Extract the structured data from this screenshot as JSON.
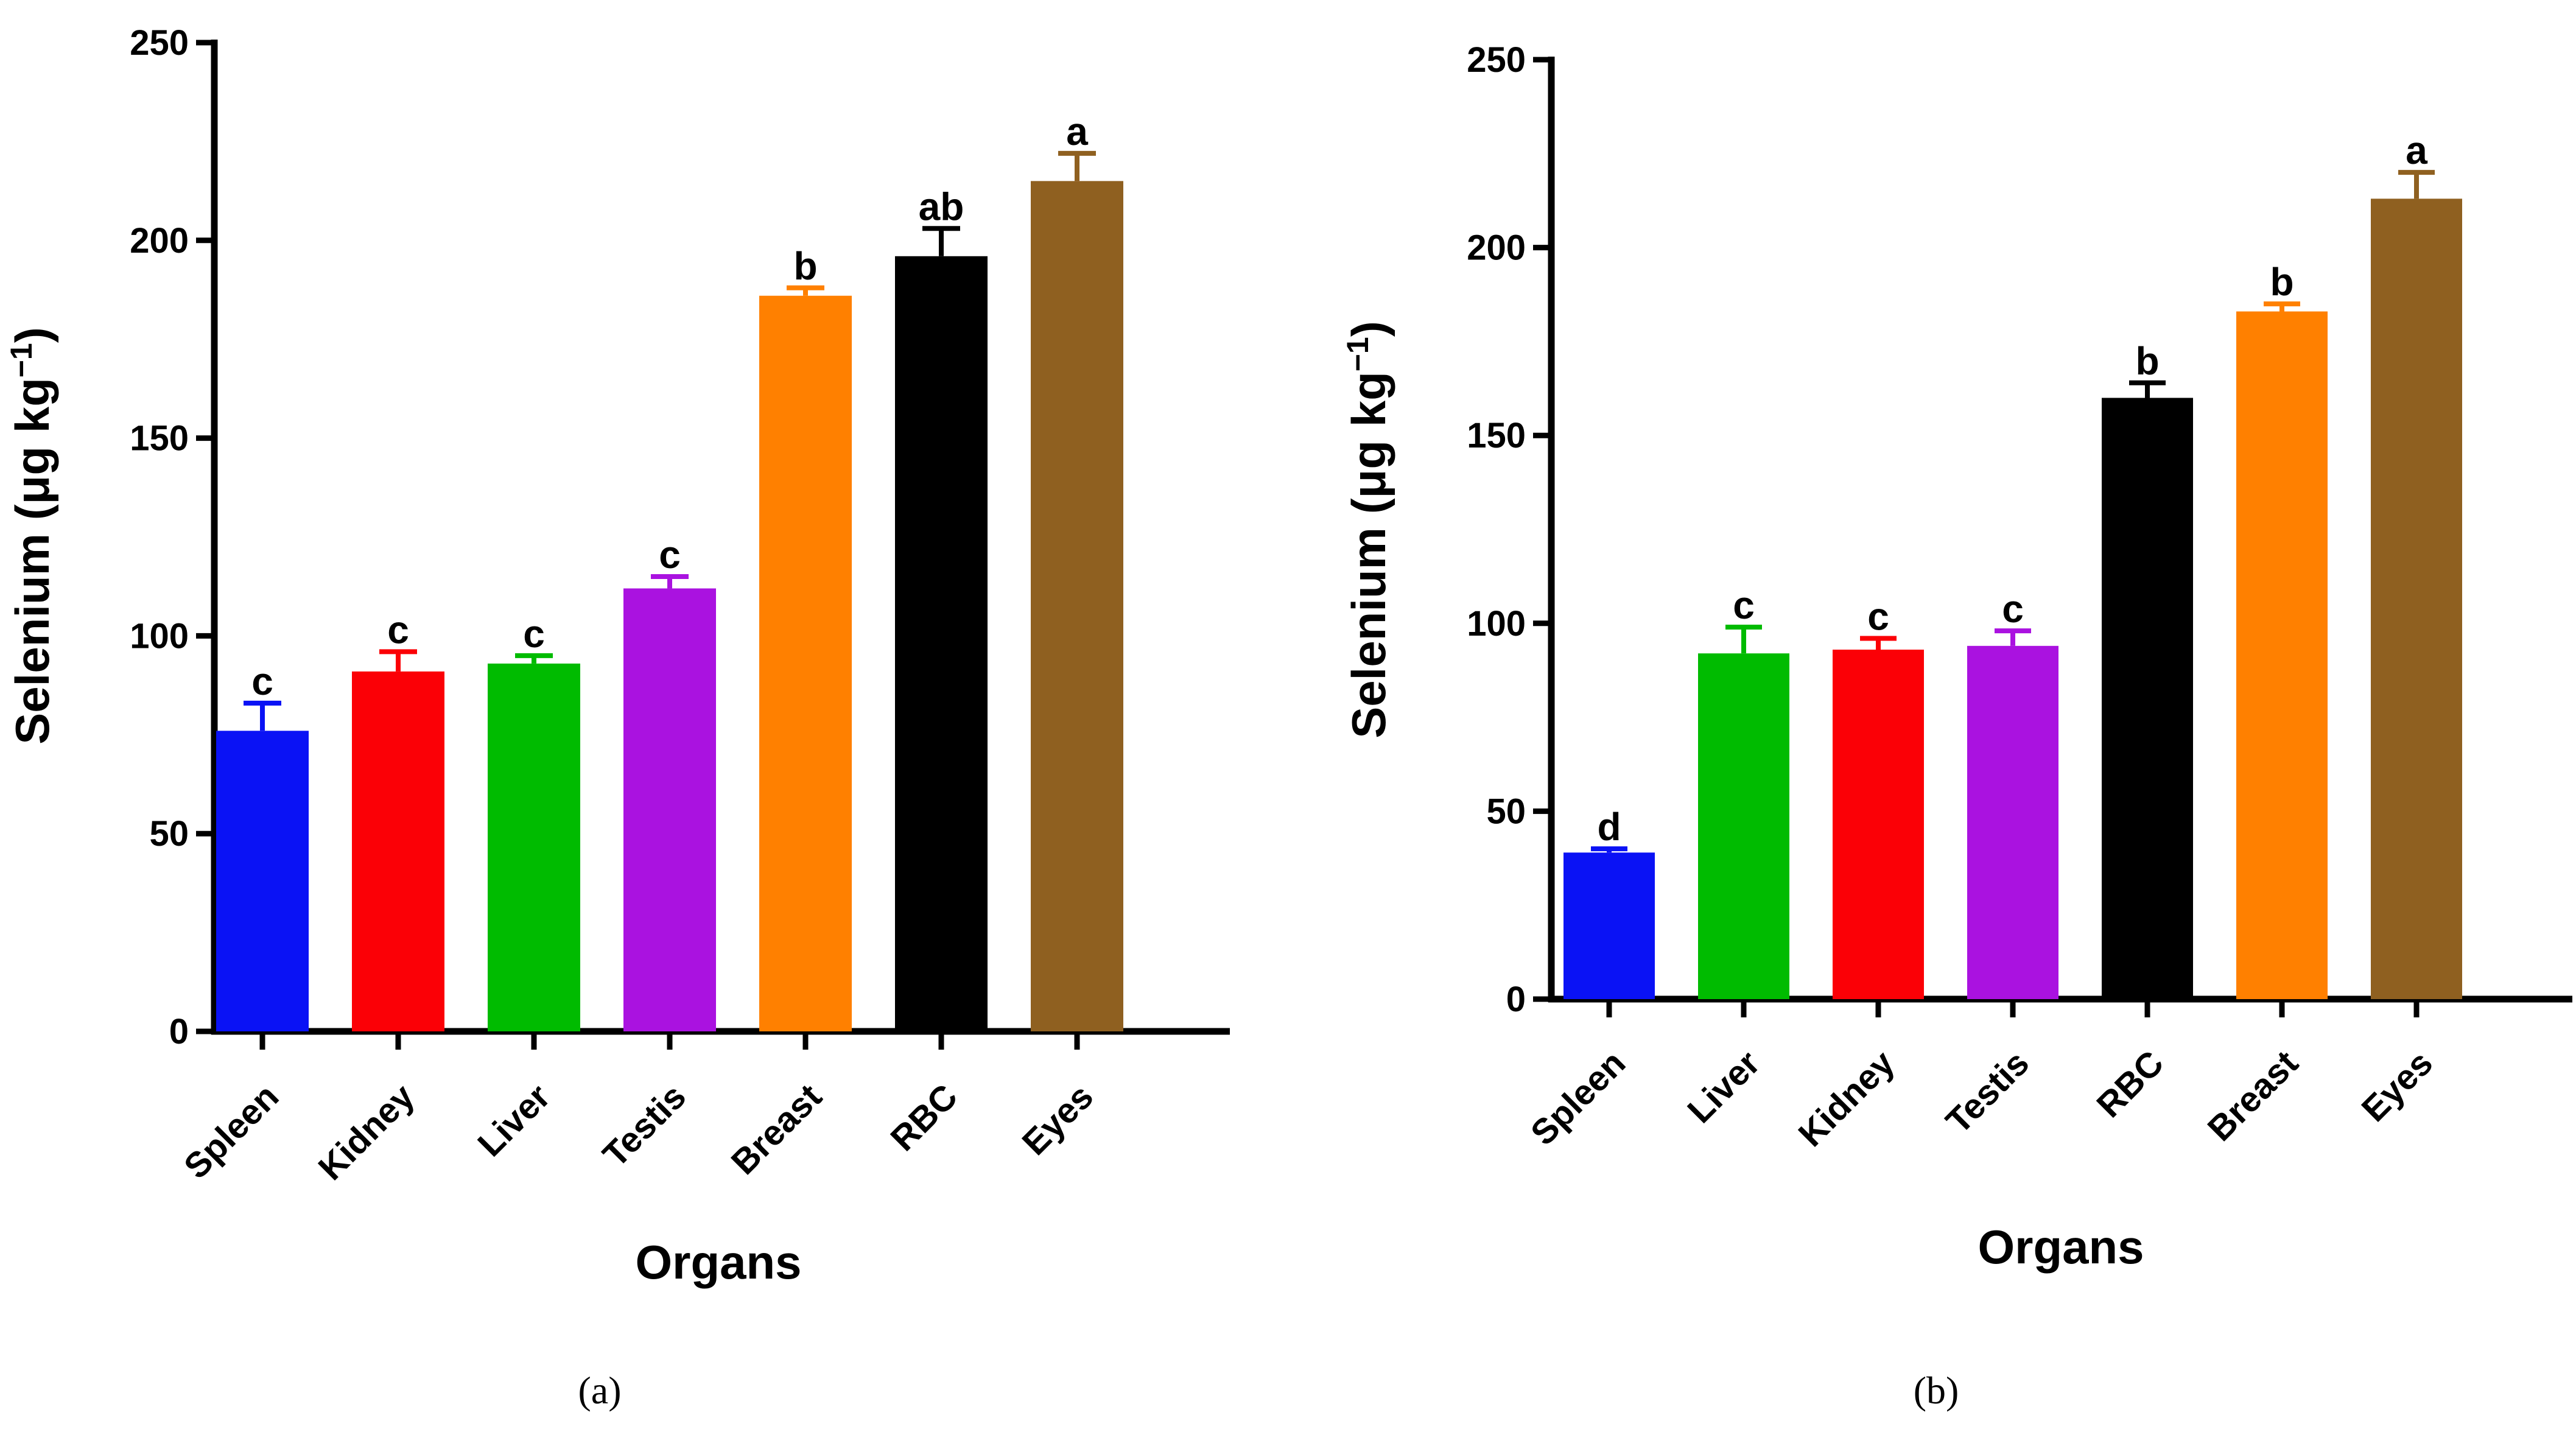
{
  "chart_data": [
    {
      "type": "bar",
      "panel_label": "(a)",
      "title": "",
      "xlabel": "Organs",
      "ylabel_main": "Selenium (μg kg",
      "ylabel_sup": "−1",
      "ylabel_close": ")",
      "ylim": [
        0,
        250
      ],
      "yticks": [
        "0",
        "50",
        "100",
        "150",
        "200",
        "250"
      ],
      "categories": [
        "Spleen",
        "Kidney",
        "Liver",
        "Testis",
        "Breast",
        "RBC",
        "Eyes"
      ],
      "values": [
        76,
        91,
        93,
        112,
        186,
        196,
        215
      ],
      "errors": [
        7,
        5,
        2,
        3,
        2,
        7,
        7
      ],
      "significance": [
        "c",
        "c",
        "c",
        "c",
        "b",
        "ab",
        "a"
      ],
      "colors": [
        "#0a12f5",
        "#fb0006",
        "#00bb00",
        "#aa12e0",
        "#ff8000",
        "#000000",
        "#8f6020"
      ]
    },
    {
      "type": "bar",
      "panel_label": "(b)",
      "title": "",
      "xlabel": "Organs",
      "ylabel_main": "Selenium (μg kg",
      "ylabel_sup": "−1",
      "ylabel_close": ")",
      "ylim": [
        0,
        250
      ],
      "yticks": [
        "0",
        "50",
        "100",
        "150",
        "200",
        "250"
      ],
      "categories": [
        "Spleen",
        "Liver",
        "Kidney",
        "Testis",
        "RBC",
        "Breast",
        "Eyes"
      ],
      "values": [
        39,
        92,
        93,
        94,
        160,
        183,
        213
      ],
      "errors": [
        1,
        7,
        3,
        4,
        4,
        2,
        7
      ],
      "significance": [
        "d",
        "c",
        "c",
        "c",
        "b",
        "b",
        "a"
      ],
      "colors": [
        "#0a12f5",
        "#00bb00",
        "#fb0006",
        "#aa12e0",
        "#000000",
        "#ff8000",
        "#8f6020"
      ]
    }
  ]
}
